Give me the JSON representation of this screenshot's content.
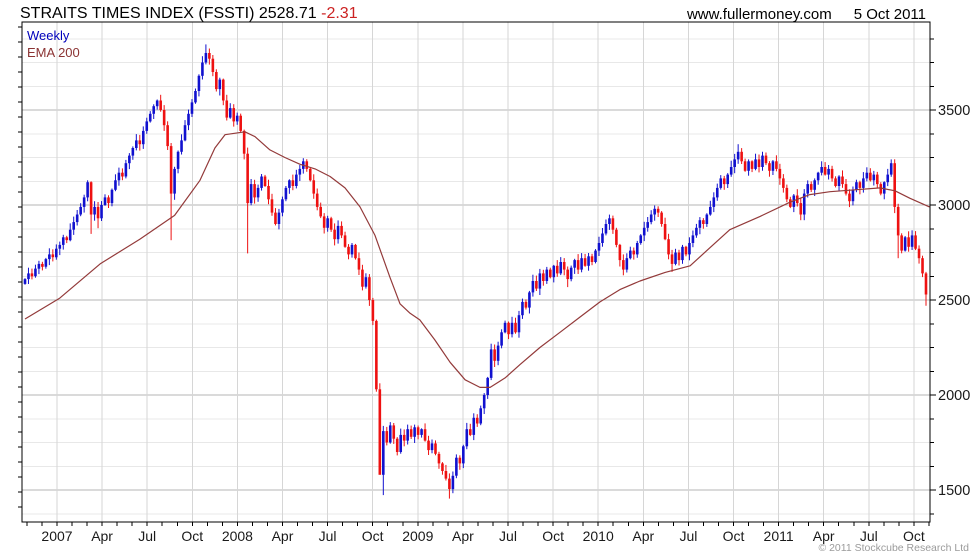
{
  "header": {
    "title_main": "STRAITS TIMES INDEX (FSSTI) 2528.71 ",
    "title_change": "-2.31",
    "site": "www.fullermoney.com",
    "date": "5 Oct 2011"
  },
  "legend": {
    "series1": "Weekly",
    "series2": "EMA 200"
  },
  "footer": {
    "copyright": "© 2011 Stockcube Research Ltd"
  },
  "chart_data": {
    "type": "candlestick+line",
    "title": "STRAITS TIMES INDEX (FSSTI)",
    "instrument": "Straits Times Index",
    "ticker": "FSSTI",
    "period": "Weekly",
    "overlay": "EMA 200",
    "last_close": 2528.71,
    "change": -2.31,
    "as_of": "5 Oct 2011",
    "colors": {
      "up": "#1111cf",
      "down": "#ee1111",
      "ema": "#933a3a",
      "grid_minor": "#e8e8e8",
      "grid_major": "#b6b6b6",
      "grid_vert": "#d6d6d6",
      "axis_text": "#1a1a1a",
      "border": "#000000"
    },
    "y_axis": {
      "ticks": [
        1500,
        2000,
        2500,
        3000,
        3500
      ],
      "minor_step": 125,
      "grid_min": 1375,
      "grid_max": 3875,
      "range_top": 3960,
      "range_bottom": 1340
    },
    "x_axis": {
      "labels": [
        "2007",
        "Apr",
        "Jul",
        "Oct",
        "2008",
        "Apr",
        "Jul",
        "Oct",
        "2009",
        "Apr",
        "Jul",
        "Oct",
        "2010",
        "Apr",
        "Jul",
        "Oct",
        "2011",
        "Apr",
        "Jul",
        "Oct"
      ],
      "minor_ticks_per_quarter": 3
    },
    "first_open": 2585,
    "weekly_closes": [
      2610,
      2640,
      2625,
      2665,
      2690,
      2675,
      2715,
      2740,
      2725,
      2770,
      2790,
      2830,
      2815,
      2870,
      2910,
      2950,
      2990,
      3040,
      3120,
      2950,
      2990,
      2930,
      3000,
      3040,
      3010,
      3080,
      3130,
      3170,
      3150,
      3220,
      3260,
      3300,
      3340,
      3320,
      3390,
      3440,
      3480,
      3520,
      3550,
      3500,
      3420,
      3310,
      3060,
      3190,
      3280,
      3340,
      3420,
      3480,
      3540,
      3600,
      3680,
      3750,
      3800,
      3770,
      3700,
      3610,
      3660,
      3550,
      3460,
      3510,
      3440,
      3470,
      3390,
      3270,
      3010,
      3110,
      3040,
      3090,
      3150,
      3100,
      3030,
      2960,
      2900,
      2960,
      3030,
      3090,
      3130,
      3100,
      3160,
      3190,
      3230,
      3190,
      3130,
      3060,
      2990,
      2940,
      2880,
      2930,
      2870,
      2820,
      2890,
      2840,
      2780,
      2740,
      2790,
      2720,
      2660,
      2570,
      2620,
      2500,
      2390,
      2030,
      1580,
      1810,
      1750,
      1840,
      1770,
      1700,
      1790,
      1760,
      1820,
      1780,
      1830,
      1790,
      1820,
      1760,
      1710,
      1745,
      1690,
      1640,
      1600,
      1560,
      1505,
      1575,
      1670,
      1640,
      1730,
      1820,
      1790,
      1880,
      1850,
      1930,
      2000,
      2090,
      2240,
      2180,
      2260,
      2330,
      2380,
      2320,
      2380,
      2330,
      2420,
      2490,
      2460,
      2540,
      2600,
      2560,
      2640,
      2600,
      2660,
      2620,
      2680,
      2640,
      2700,
      2660,
      2610,
      2670,
      2710,
      2660,
      2720,
      2680,
      2730,
      2700,
      2760,
      2800,
      2850,
      2900,
      2930,
      2870,
      2790,
      2710,
      2660,
      2720,
      2760,
      2740,
      2800,
      2840,
      2880,
      2910,
      2950,
      2980,
      2960,
      2900,
      2820,
      2740,
      2690,
      2750,
      2710,
      2780,
      2740,
      2800,
      2840,
      2880,
      2920,
      2900,
      2950,
      2990,
      3040,
      3090,
      3140,
      3110,
      3160,
      3200,
      3240,
      3280,
      3230,
      3180,
      3230,
      3190,
      3240,
      3200,
      3260,
      3220,
      3180,
      3230,
      3190,
      3140,
      3090,
      3030,
      2990,
      3050,
      3010,
      2950,
      3060,
      3110,
      3080,
      3130,
      3170,
      3200,
      3160,
      3190,
      3140,
      3100,
      3150,
      3110,
      3060,
      3020,
      3080,
      3120,
      3090,
      3140,
      3170,
      3130,
      3160,
      3110,
      3060,
      3120,
      3160,
      3220,
      2990,
      2840,
      2760,
      2830,
      2780,
      2840,
      2770,
      2720,
      2640,
      2528.71
    ],
    "wick_overrides": {
      "19": [
        null,
        2848
      ],
      "21": [
        null,
        2878
      ],
      "42": [
        null,
        2815
      ],
      "52": [
        3845,
        null
      ],
      "64": [
        null,
        2745
      ],
      "102": [
        null,
        1740
      ],
      "103": [
        null,
        1473
      ],
      "122": [
        null,
        1455
      ],
      "156": [
        null,
        2568
      ],
      "172": [
        null,
        2630
      ],
      "186": [
        null,
        2648
      ],
      "205": [
        3320,
        null
      ],
      "223": [
        null,
        2920
      ],
      "249": [
        3240,
        null
      ],
      "251": [
        null,
        2720
      ],
      "259": [
        null,
        2470
      ]
    },
    "ema200": [
      [
        0,
        2400
      ],
      [
        10,
        2510
      ],
      [
        21.6,
        2690
      ],
      [
        33,
        2820
      ],
      [
        43,
        2945
      ],
      [
        50.3,
        3130
      ],
      [
        54.6,
        3300
      ],
      [
        57.5,
        3370
      ],
      [
        63.2,
        3385
      ],
      [
        66.1,
        3360
      ],
      [
        70.4,
        3290
      ],
      [
        74.7,
        3250
      ],
      [
        79,
        3215
      ],
      [
        83.4,
        3190
      ],
      [
        87.7,
        3150
      ],
      [
        92,
        3090
      ],
      [
        96.3,
        2990
      ],
      [
        100.6,
        2840
      ],
      [
        104.9,
        2620
      ],
      [
        107.8,
        2480
      ],
      [
        110.7,
        2430
      ],
      [
        113.5,
        2395
      ],
      [
        117.8,
        2290
      ],
      [
        122.2,
        2172
      ],
      [
        126.5,
        2080
      ],
      [
        130.8,
        2040
      ],
      [
        133.7,
        2040
      ],
      [
        138,
        2090
      ],
      [
        142.3,
        2160
      ],
      [
        148,
        2250
      ],
      [
        153.8,
        2330
      ],
      [
        159.5,
        2410
      ],
      [
        165.3,
        2490
      ],
      [
        171,
        2555
      ],
      [
        176.8,
        2600
      ],
      [
        184,
        2645
      ],
      [
        191.2,
        2680
      ],
      [
        196,
        2760
      ],
      [
        202.6,
        2870
      ],
      [
        211.3,
        2940
      ],
      [
        219.9,
        3015
      ],
      [
        225.6,
        3055
      ],
      [
        231.4,
        3070
      ],
      [
        238.6,
        3080
      ],
      [
        245.8,
        3090
      ],
      [
        250.1,
        3075
      ],
      [
        254.4,
        3035
      ],
      [
        260,
        2990
      ]
    ]
  }
}
